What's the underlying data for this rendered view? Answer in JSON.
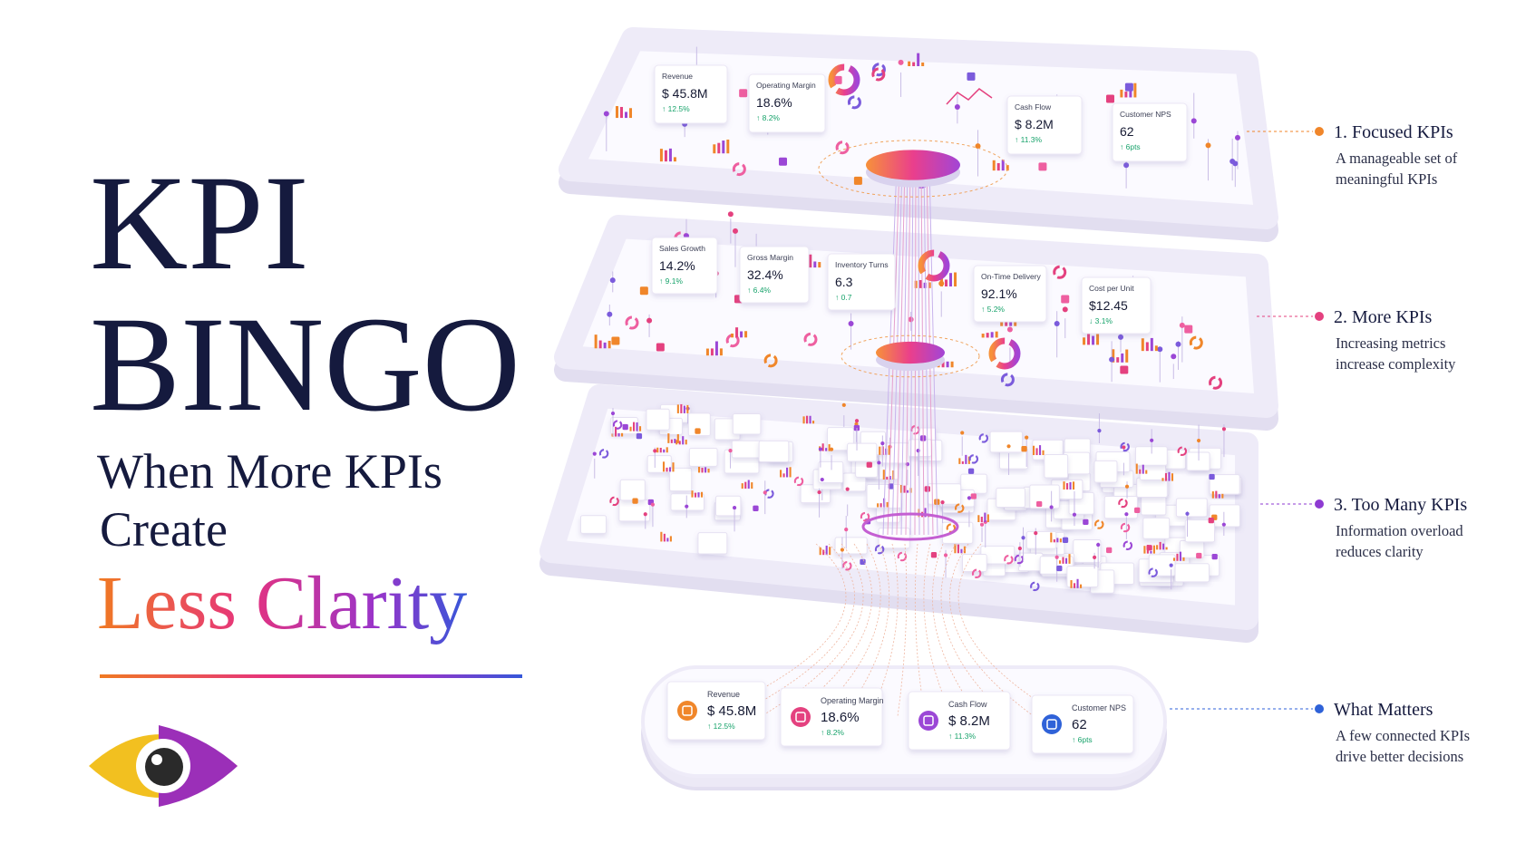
{
  "title": {
    "line1": "KPI",
    "line2": "BINGO"
  },
  "subtitle": {
    "line1": "When More KPIs",
    "line2": "Create",
    "line3": "Less Clarity"
  },
  "layers": {
    "focused": {
      "cards": [
        {
          "label": "Revenue",
          "value": "$ 45.8M",
          "change": "↑ 12.5%"
        },
        {
          "label": "Operating Margin",
          "value": "18.6%",
          "change": "↑ 8.2%"
        },
        {
          "label": "Cash Flow",
          "value": "$ 8.2M",
          "change": "↑ 11.3%"
        },
        {
          "label": "Customer NPS",
          "value": "62",
          "change": "↑ 6pts"
        }
      ]
    },
    "more": {
      "cards": [
        {
          "label": "Sales Growth",
          "value": "14.2%",
          "change": "↑ 9.1%"
        },
        {
          "label": "Gross Margin",
          "value": "32.4%",
          "change": "↑ 6.4%"
        },
        {
          "label": "Inventory Turns",
          "value": "6.3",
          "change": "↑ 0.7"
        },
        {
          "label": "On-Time Delivery",
          "value": "92.1%",
          "change": "↑ 5.2%"
        },
        {
          "label": "Cost per Unit",
          "value": "$12.45",
          "change": "↓ 3.1%"
        }
      ]
    },
    "matters": {
      "cards": [
        {
          "label": "Revenue",
          "value": "$ 45.8M",
          "change": "↑ 12.5%"
        },
        {
          "label": "Operating Margin",
          "value": "18.6%",
          "change": "↑ 8.2%"
        },
        {
          "label": "Cash Flow",
          "value": "$ 8.2M",
          "change": "↑ 11.3%"
        },
        {
          "label": "Customer NPS",
          "value": "62",
          "change": "↑ 6pts"
        }
      ]
    }
  },
  "legend": [
    {
      "heading": "1. Focused KPIs",
      "lines": [
        "A manageable set of",
        "meaningful KPIs"
      ]
    },
    {
      "heading": "2. More KPIs",
      "lines": [
        "Increasing metrics",
        "increase complexity"
      ]
    },
    {
      "heading": "3. Too Many KPIs",
      "lines": [
        "Information overload",
        "reduces clarity"
      ]
    },
    {
      "heading": "What Matters",
      "lines": [
        "A few connected KPIs",
        "drive better decisions"
      ]
    }
  ]
}
